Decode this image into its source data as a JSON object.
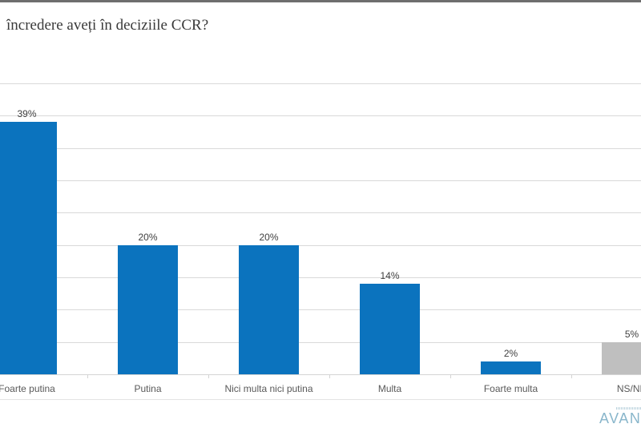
{
  "page": {
    "top_strip_color": "#6E6E6E"
  },
  "chart_data": {
    "type": "bar",
    "title": "încredere aveți în deciziile CCR?",
    "categories": [
      "Foarte putina",
      "Putina",
      "Nici multa nici putina",
      "Multa",
      "Foarte multa",
      "NS/NR"
    ],
    "values": [
      39,
      20,
      20,
      14,
      2,
      5
    ],
    "value_labels": [
      "39%",
      "20%",
      "20%",
      "14%",
      "2%",
      "5%"
    ],
    "bar_colors": [
      "#0B73BE",
      "#0B73BE",
      "#0B73BE",
      "#0B73BE",
      "#0B73BE",
      "#BFBFBF"
    ],
    "xlabel": "",
    "ylabel": "",
    "ylim": [
      0,
      45
    ],
    "gridline_step": 5,
    "grid": true,
    "legend": "none"
  },
  "colors": {
    "bar_blue": "#0B73BE",
    "bar_gray": "#BFBFBF",
    "gridline": "#D9D9D9",
    "value_label": "#404040",
    "category_label": "#595959",
    "title": "#3A3A3A",
    "logo_blue": "#89B6CB"
  },
  "logo": {
    "text": "AVAN"
  }
}
